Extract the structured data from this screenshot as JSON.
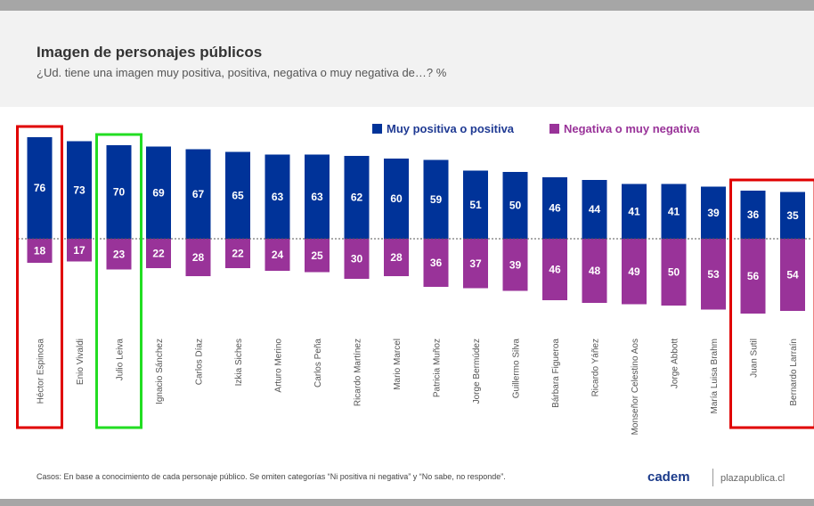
{
  "header": {
    "title": "Imagen de personajes públicos",
    "subtitle": "¿Ud. tiene una imagen muy positiva, positiva, negativa o muy negativa de…? %"
  },
  "colors": {
    "positive": "#003399",
    "negative": "#993399",
    "highlight_red": "#e00000",
    "highlight_green": "#22dd22"
  },
  "chart_data": {
    "type": "bar",
    "categories": [
      "Héctor Espinosa",
      "Enio Vivaldi",
      "Julio Leiva",
      "Ignacio Sánchez",
      "Carlos Díaz",
      "Izkia Siches",
      "Arturo Merino",
      "Carlos Peña",
      "Ricardo Martínez",
      "Mario Marcel",
      "Patricia Muñoz",
      "Jorge Bermúdez",
      "Guillermo Silva",
      "Bárbara Figueroa",
      "Ricardo Yáñez",
      "Monseñor Celestino Aos",
      "Jorge Abbott",
      "María Luisa Brahm",
      "Juan Sutil",
      "Bernardo Larraín"
    ],
    "series": [
      {
        "name": "Muy positiva o positiva",
        "values": [
          76,
          73,
          70,
          69,
          67,
          65,
          63,
          63,
          62,
          60,
          59,
          51,
          50,
          46,
          44,
          41,
          41,
          39,
          36,
          35
        ]
      },
      {
        "name": "Negativa o muy negativa",
        "values": [
          18,
          17,
          23,
          22,
          28,
          22,
          24,
          25,
          30,
          28,
          36,
          37,
          39,
          46,
          48,
          49,
          50,
          53,
          56,
          54
        ]
      }
    ],
    "highlights": [
      {
        "categories": [
          "Héctor Espinosa"
        ],
        "color": "red"
      },
      {
        "categories": [
          "Julio Leiva"
        ],
        "color": "green"
      },
      {
        "categories": [
          "Juan Sutil",
          "Bernardo Larraín"
        ],
        "color": "red"
      }
    ]
  },
  "footer": {
    "note": "Casos: En base a conocimiento de cada personaje público. Se omiten categorías “Ni positiva ni negativa” y “No sabe, no responde”.",
    "logo": "cadem",
    "site": "plazapublica.cl"
  }
}
